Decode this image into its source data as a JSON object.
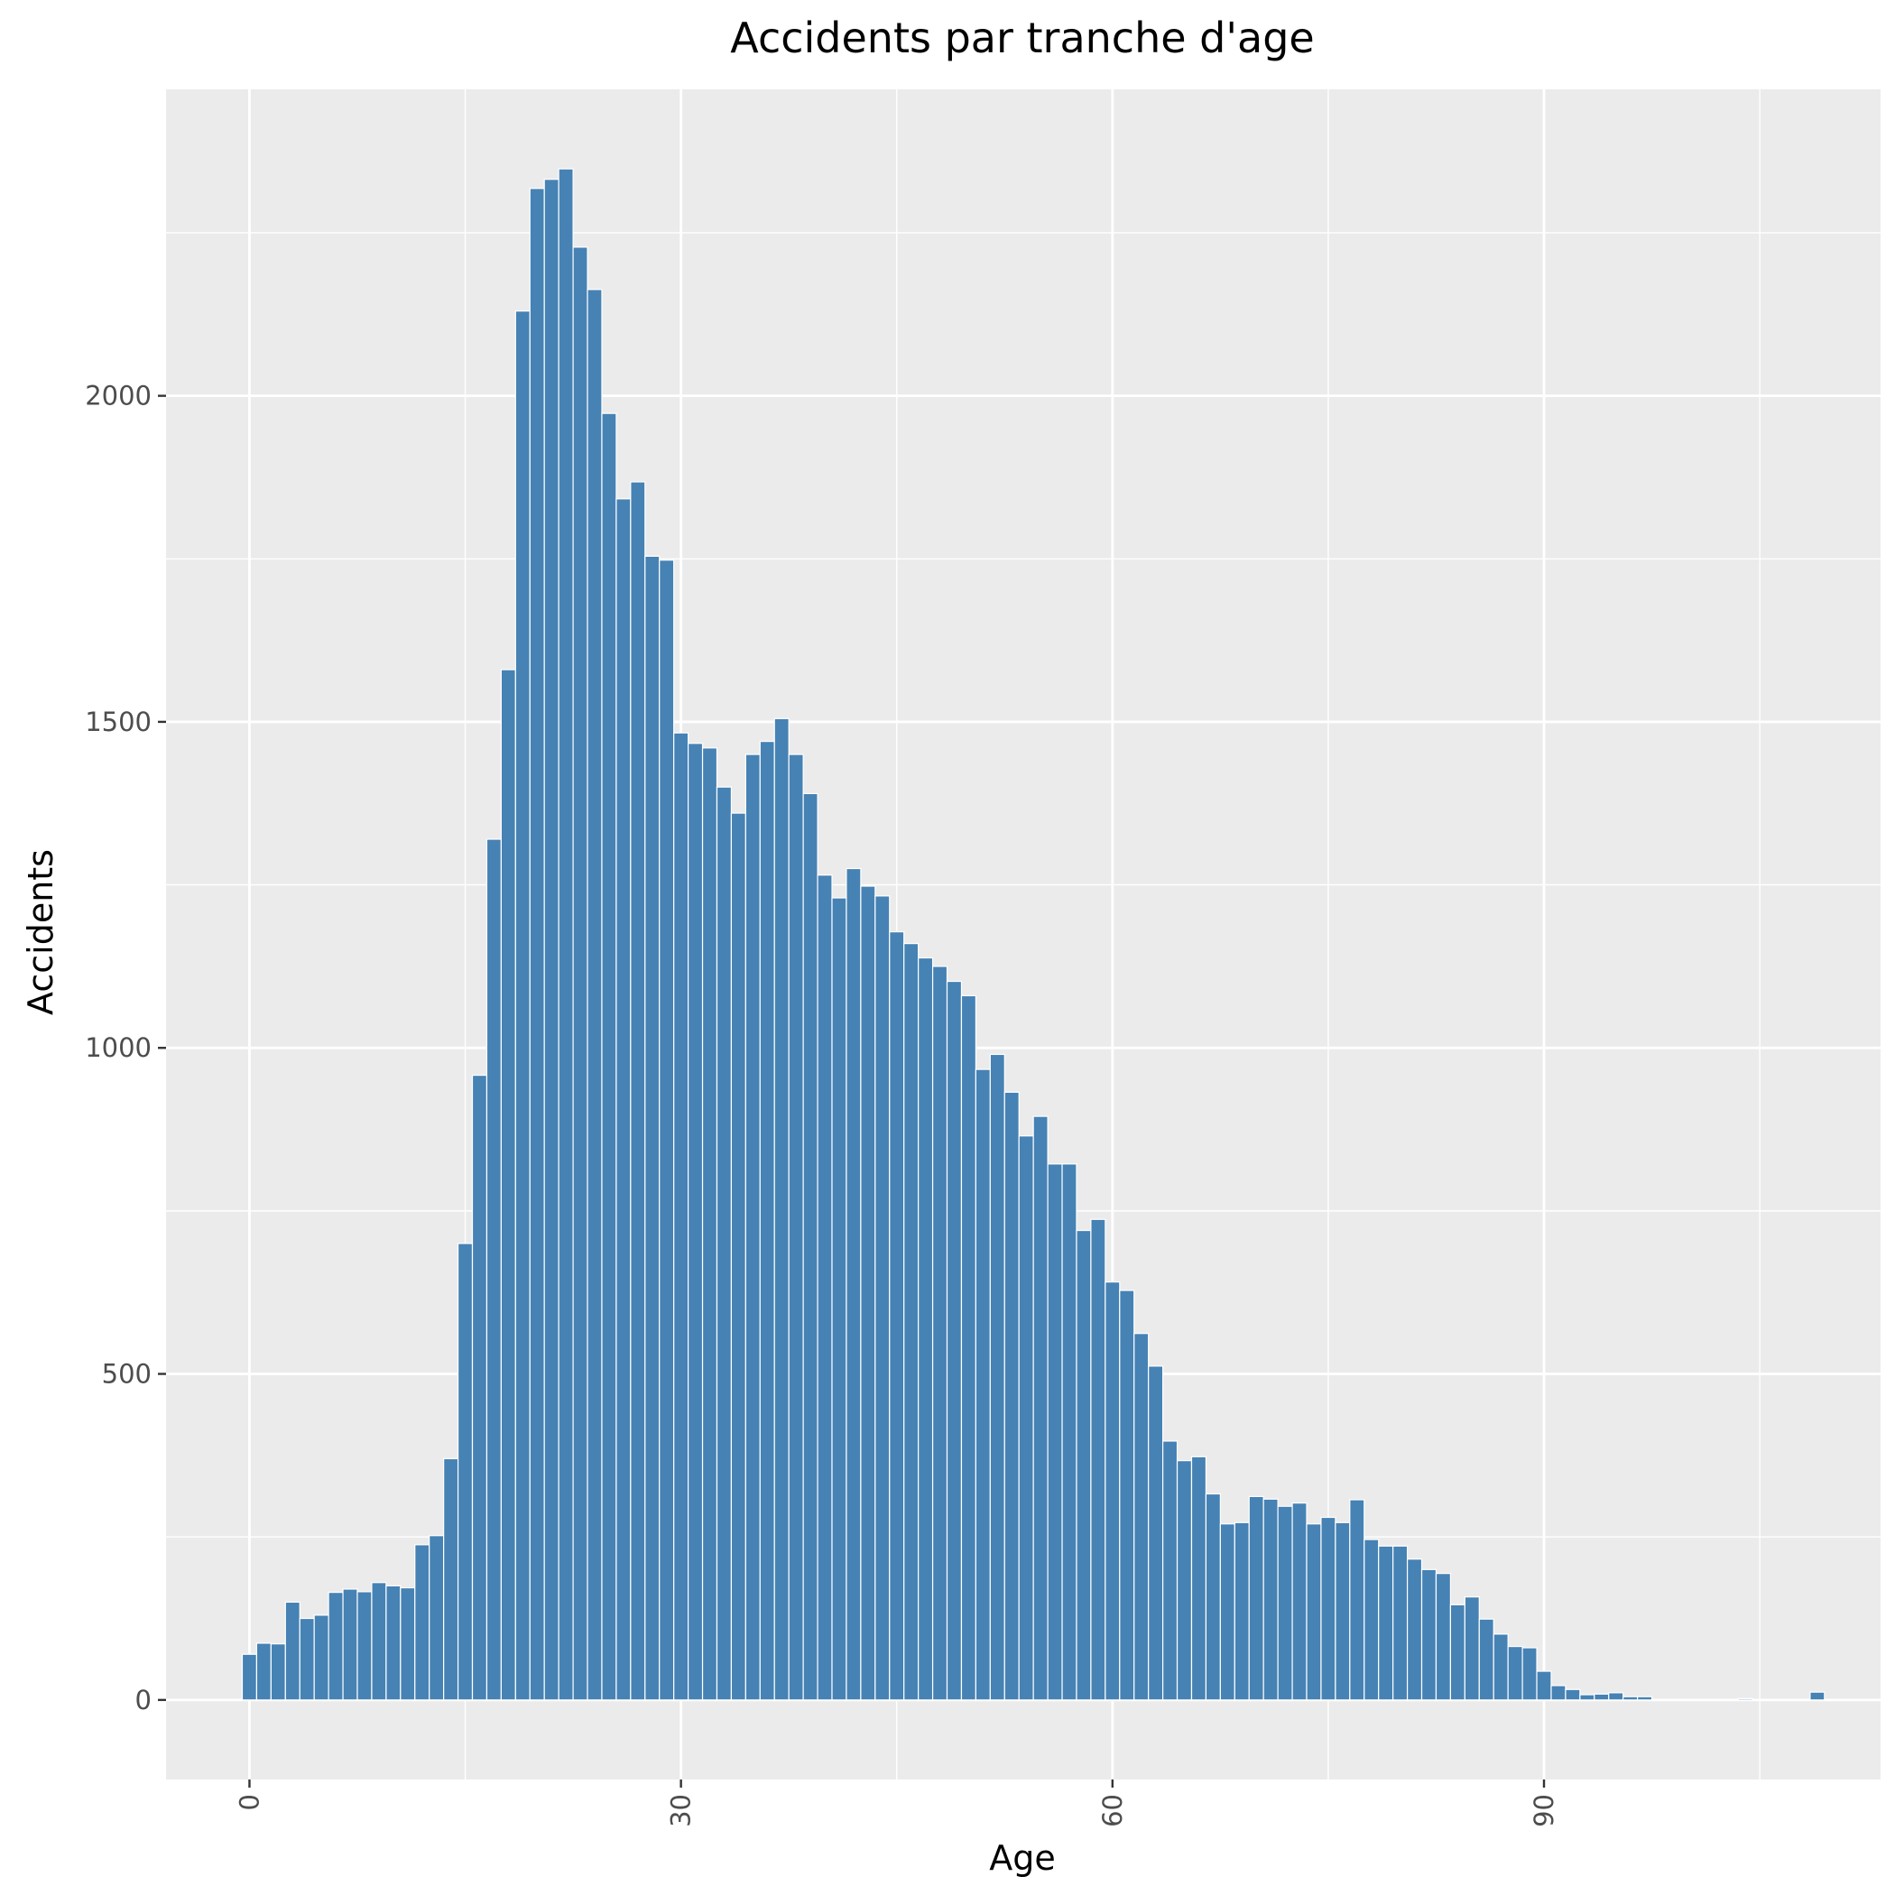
{
  "chart_data": {
    "type": "bar",
    "title": "Accidents par tranche d'age",
    "xlabel": "Age",
    "ylabel": "Accidents",
    "x_ticks": [
      {
        "value": 0,
        "label": "0"
      },
      {
        "value": 30,
        "label": "30"
      },
      {
        "value": 60,
        "label": "60"
      },
      {
        "value": 90,
        "label": "90"
      }
    ],
    "y_ticks": [
      {
        "value": 0,
        "label": "0"
      },
      {
        "value": 500,
        "label": "500"
      },
      {
        "value": 1000,
        "label": "1000"
      },
      {
        "value": 1500,
        "label": "1500"
      },
      {
        "value": 2000,
        "label": "2000"
      }
    ],
    "x_minor_gridlines": [
      15,
      45,
      75,
      105
    ],
    "y_minor_gridlines": [
      250,
      750,
      1250,
      1750,
      2250
    ],
    "xlim": [
      -5.8,
      113.4
    ],
    "ylim": [
      -122,
      2470
    ],
    "grid": true,
    "bar_color": "#4682b4",
    "panel_color": "#ebebeb",
    "grid_color": "#ffffff",
    "x": [
      0,
      1,
      2,
      3,
      4,
      5,
      6,
      7,
      8,
      9,
      10,
      11,
      12,
      13,
      14,
      15,
      16,
      17,
      18,
      19,
      20,
      21,
      22,
      23,
      24,
      25,
      26,
      27,
      28,
      29,
      30,
      31,
      32,
      33,
      34,
      35,
      36,
      37,
      38,
      39,
      40,
      41,
      42,
      43,
      44,
      45,
      46,
      47,
      48,
      49,
      50,
      51,
      52,
      53,
      54,
      55,
      56,
      57,
      58,
      59,
      60,
      61,
      62,
      63,
      64,
      65,
      66,
      67,
      68,
      69,
      70,
      71,
      72,
      73,
      74,
      75,
      76,
      77,
      78,
      79,
      80,
      81,
      82,
      83,
      84,
      85,
      86,
      87,
      88,
      89,
      90,
      91,
      92,
      93,
      94,
      95,
      96,
      97,
      98,
      99,
      100,
      101,
      102,
      103,
      104,
      105,
      106,
      107,
      108,
      109
    ],
    "values": [
      70,
      87,
      86,
      150,
      125,
      130,
      165,
      170,
      166,
      180,
      175,
      172,
      238,
      252,
      370,
      700,
      958,
      1320,
      1580,
      2130,
      2318,
      2332,
      2348,
      2228,
      2163,
      1973,
      1842,
      1868,
      1754,
      1748,
      1483,
      1467,
      1460,
      1400,
      1360,
      1450,
      1470,
      1505,
      1450,
      1390,
      1265,
      1230,
      1275,
      1248,
      1233,
      1178,
      1160,
      1138,
      1125,
      1102,
      1080,
      967,
      990,
      932,
      865,
      895,
      822,
      822,
      720,
      737,
      641,
      628,
      562,
      512,
      397,
      367,
      373,
      316,
      270,
      272,
      312,
      308,
      297,
      302,
      270,
      280,
      272,
      307,
      246,
      236,
      236,
      216,
      200,
      194,
      146,
      158,
      124,
      101,
      82,
      80,
      44,
      22,
      16,
      8,
      9,
      11,
      5,
      5,
      0,
      0,
      0,
      0,
      0,
      0,
      2,
      0,
      0,
      0,
      0,
      12
    ]
  }
}
